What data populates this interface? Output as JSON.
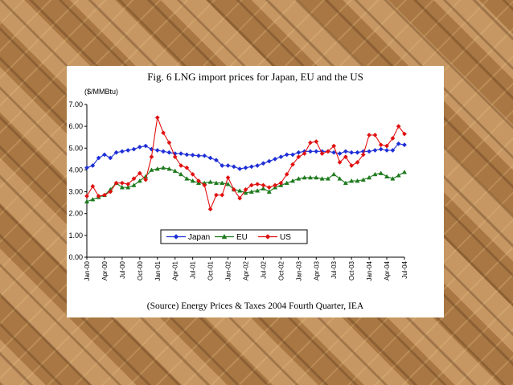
{
  "figure_title": "Fig. 6 LNG import prices for Japan, EU and the US",
  "source_note": "(Source) Energy Prices & Taxes 2004 Fourth Quarter, IEA",
  "chart_data": {
    "type": "line",
    "ylabel": "($/MMBtu)",
    "ylim": [
      0,
      7
    ],
    "yticks": [
      "0.00",
      "1.00",
      "2.00",
      "3.00",
      "4.00",
      "5.00",
      "6.00",
      "7.00"
    ],
    "xticks": [
      "Jan-00",
      "Apr-00",
      "Jul-00",
      "Oct-00",
      "Jan-01",
      "Apr-01",
      "Jul-01",
      "Oct-01",
      "Jan-02",
      "Apr-02",
      "Jul-02",
      "Oct-02",
      "Jan-03",
      "Apr-03",
      "Jul-03",
      "Oct-03",
      "Jan-04",
      "Apr-04",
      "Jul-04"
    ],
    "legend_position": "bottom-center",
    "grid": false,
    "series": [
      {
        "name": "Japan",
        "color": "#1f2fd6",
        "marker": "diamond",
        "values": [
          4.1,
          4.2,
          4.55,
          4.7,
          4.55,
          4.8,
          4.85,
          4.9,
          4.95,
          5.05,
          5.1,
          4.95,
          4.9,
          4.85,
          4.8,
          4.75,
          4.75,
          4.7,
          4.68,
          4.65,
          4.65,
          4.55,
          4.45,
          4.2,
          4.2,
          4.15,
          4.05,
          4.1,
          4.15,
          4.2,
          4.3,
          4.4,
          4.5,
          4.6,
          4.7,
          4.7,
          4.8,
          4.85,
          4.85,
          4.85,
          4.85,
          4.85,
          4.8,
          4.75,
          4.85,
          4.8,
          4.8,
          4.85,
          4.85,
          4.9,
          4.95,
          4.9,
          4.9,
          5.2,
          5.15
        ]
      },
      {
        "name": "EU",
        "color": "#1d7a1d",
        "marker": "triangle",
        "values": [
          2.55,
          2.65,
          2.75,
          2.85,
          3.1,
          3.4,
          3.2,
          3.2,
          3.3,
          3.5,
          3.7,
          4.0,
          4.05,
          4.1,
          4.05,
          3.95,
          3.8,
          3.6,
          3.5,
          3.4,
          3.4,
          3.45,
          3.4,
          3.4,
          3.35,
          3.1,
          3.05,
          2.95,
          3.0,
          3.05,
          3.15,
          3.0,
          3.2,
          3.3,
          3.4,
          3.5,
          3.6,
          3.65,
          3.65,
          3.65,
          3.6,
          3.6,
          3.8,
          3.6,
          3.4,
          3.5,
          3.5,
          3.55,
          3.65,
          3.8,
          3.85,
          3.7,
          3.6,
          3.75,
          3.9
        ]
      },
      {
        "name": "US",
        "color": "#e01010",
        "marker": "diamond",
        "values": [
          2.8,
          3.25,
          2.8,
          2.85,
          3.0,
          3.4,
          3.4,
          3.35,
          3.6,
          3.85,
          3.55,
          4.6,
          6.4,
          5.7,
          5.25,
          4.6,
          4.2,
          4.1,
          3.8,
          3.5,
          3.3,
          2.2,
          2.85,
          2.85,
          3.65,
          3.1,
          2.7,
          3.1,
          3.3,
          3.35,
          3.3,
          3.2,
          3.3,
          3.4,
          3.8,
          4.25,
          4.6,
          4.75,
          5.25,
          5.3,
          4.75,
          4.85,
          5.1,
          4.35,
          4.6,
          4.2,
          4.35,
          4.7,
          5.6,
          5.6,
          5.15,
          5.1,
          5.45,
          6.0,
          5.65
        ]
      }
    ]
  }
}
